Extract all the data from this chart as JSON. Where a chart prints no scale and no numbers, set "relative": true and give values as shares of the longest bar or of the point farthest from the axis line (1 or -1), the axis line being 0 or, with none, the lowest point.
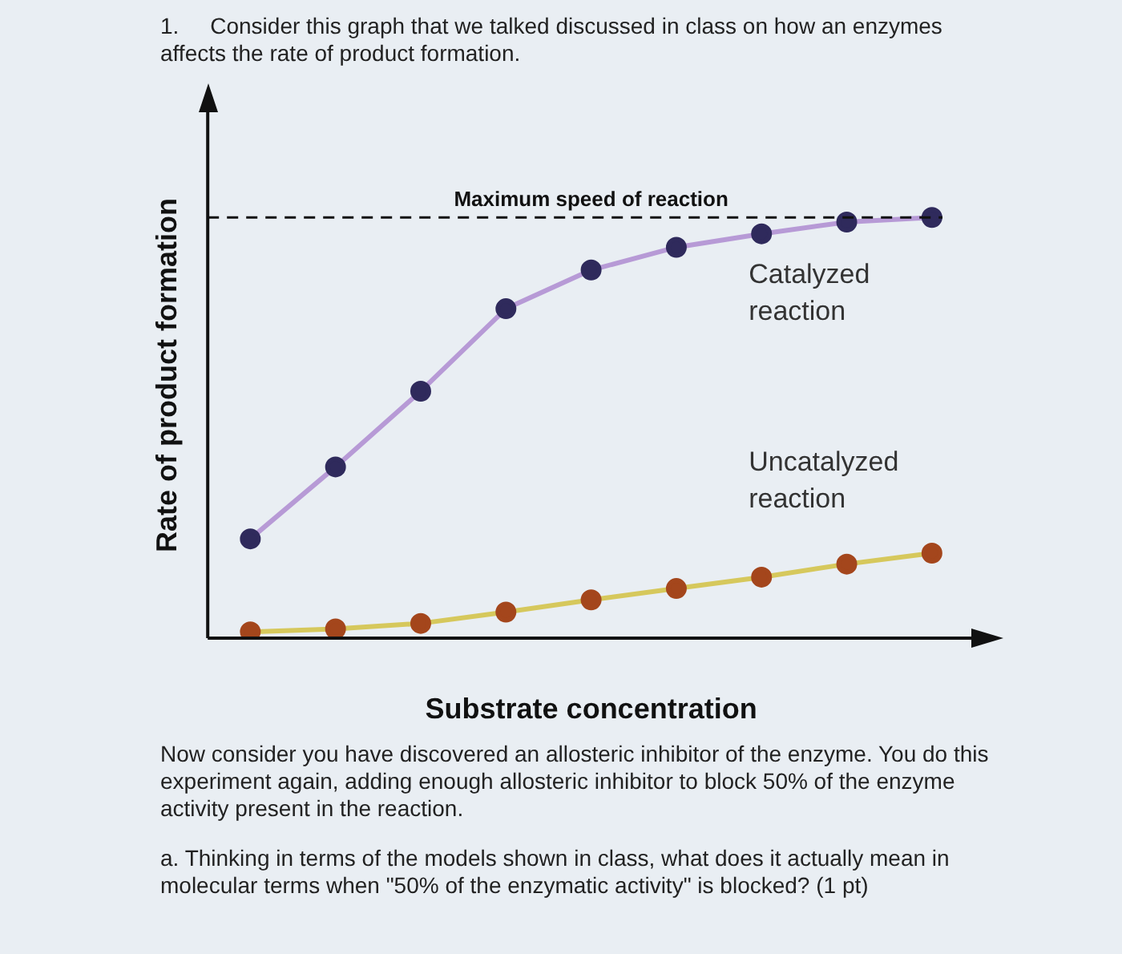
{
  "chart_data": {
    "type": "line",
    "title": "1.     Consider this graph that we talked discussed in class on how an enzymes affects the rate of product formation.",
    "xlabel": "Substrate concentration",
    "ylabel": "Rate of product formation",
    "relative": true,
    "marker": "circle",
    "line_style": "solid",
    "categories": [
      null,
      null,
      null,
      null,
      null,
      null,
      null,
      null,
      null
    ],
    "series": [
      {
        "name": "Catalyzed reaction",
        "color": "#b79ad6",
        "colors": [
          "#2f2a5c",
          "#2f2a5c",
          "#2f2a5c",
          "#2f2a5c",
          "#2f2a5c",
          "#2f2a5c",
          "#2f2a5c",
          "#2f2a5c",
          "#2f2a5c"
        ],
        "values": [
          0.236,
          0.407,
          0.587,
          0.783,
          0.875,
          0.929,
          0.961,
          0.989,
          1.0
        ]
      },
      {
        "name": "Uncatalyzed reaction",
        "color": "#d6c85c",
        "colors": [
          "#a4461c",
          "#a4461c",
          "#a4461c",
          "#a4461c",
          "#a4461c",
          "#a4461c",
          "#a4461c",
          "#a4461c",
          "#a4461c"
        ],
        "values": [
          0.015,
          0.022,
          0.035,
          0.062,
          0.091,
          0.118,
          0.145,
          0.176,
          0.202
        ]
      }
    ],
    "ref_lines": [
      {
        "axis": "y",
        "value": 1,
        "label": "Maximum speed of reaction",
        "line_style": "dashed",
        "color": "#111111"
      }
    ],
    "annotations": [
      "Now consider you have discovered an allosteric inhibitor of the enzyme. You do this experiment again, adding enough allosteric inhibitor to block 50% of the enzyme activity present in the reaction.",
      "a. Thinking in terms of the models shown in class, what does it actually mean in molecular terms when \"50% of the enzymatic activity\" is blocked? (1 pt)"
    ]
  }
}
